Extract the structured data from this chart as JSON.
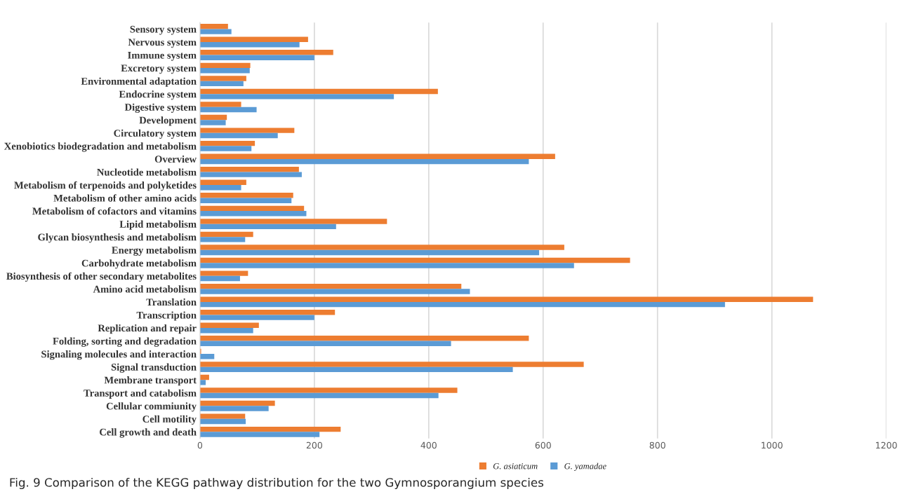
{
  "chart_data": {
    "type": "bar",
    "orientation": "horizontal",
    "categories": [
      "Sensory system",
      "Nervous system",
      "Immune system",
      "Excretory system",
      "Environmental adaptation",
      "Endocrine system",
      "Digestive system",
      "Development",
      "Circulatory system",
      "Xenobiotics biodegradation and metabolism",
      "Overview",
      "Nucleotide metabolism",
      "Metabolism of terpenoids and polyketides",
      "Metabolism of other amino acids",
      "Metabolism of cofactors and vitamins",
      "Lipid metabolism",
      "Glycan biosynthesis and metabolism",
      "Energy metabolism",
      "Carbohydrate metabolism",
      "Biosynthesis of other secondary metabolites",
      "Amino acid metabolism",
      "Translation",
      "Transcription",
      "Replication and repair",
      "Folding, sorting and degradation",
      "Signaling molecules and interaction",
      "Signal transduction",
      "Membrane transport",
      "Transport and catabolism",
      "Cellular commiunity",
      "Cell motility",
      "Cell growth and death"
    ],
    "series": [
      {
        "name": "G. asiaticum",
        "color": "#ed7d31",
        "values": [
          49,
          189,
          233,
          88,
          81,
          416,
          72,
          47,
          165,
          96,
          621,
          173,
          81,
          163,
          182,
          327,
          93,
          637,
          752,
          84,
          457,
          1072,
          236,
          103,
          575,
          2,
          671,
          16,
          450,
          131,
          79,
          246
        ]
      },
      {
        "name": "G. yamadae",
        "color": "#5b9bd5",
        "values": [
          55,
          174,
          200,
          87,
          76,
          339,
          99,
          45,
          136,
          90,
          575,
          178,
          72,
          160,
          186,
          238,
          79,
          593,
          654,
          70,
          472,
          918,
          200,
          93,
          439,
          25,
          547,
          10,
          417,
          120,
          80,
          209
        ]
      }
    ],
    "xlim": [
      0,
      1200
    ],
    "xticks": [
      0,
      200,
      400,
      600,
      800,
      1000,
      1200
    ],
    "grid": "x",
    "legend": "bottom",
    "annotations": [
      "Fig. 9 Comparison of the KEGG pathway distribution for the two Gymnosporangium species"
    ]
  }
}
